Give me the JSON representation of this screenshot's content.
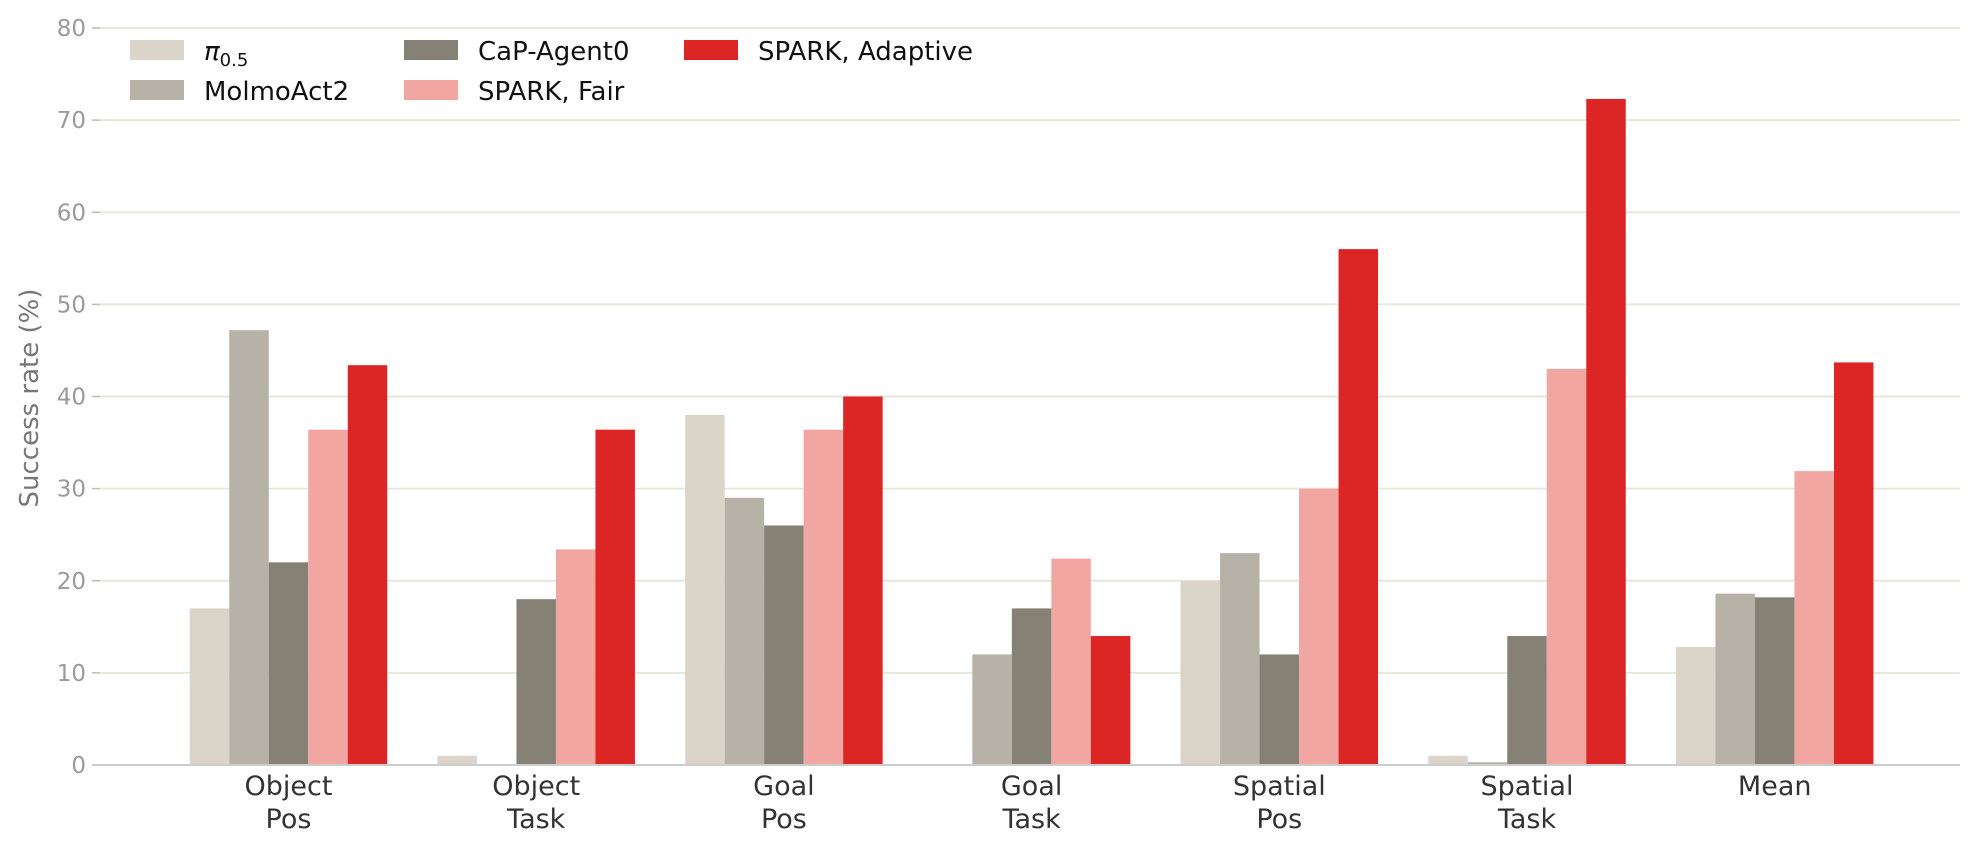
{
  "chart_data": {
    "type": "bar",
    "title": "",
    "xlabel": "",
    "ylabel": "Success rate (%)",
    "ylim": [
      0,
      80
    ],
    "yticks": [
      0,
      10,
      20,
      30,
      40,
      50,
      60,
      70,
      80
    ],
    "grid": true,
    "legend_position": "top-left",
    "categories": [
      [
        "Object",
        "Pos"
      ],
      [
        "Object",
        "Task"
      ],
      [
        "Goal",
        "Pos"
      ],
      [
        "Goal",
        "Task"
      ],
      [
        "Spatial",
        "Pos"
      ],
      [
        "Spatial",
        "Task"
      ],
      [
        "Mean"
      ]
    ],
    "series": [
      {
        "name": "π0.5",
        "legend_main": "π",
        "legend_sub": "0.5",
        "color": "#dad4c9",
        "values": [
          17,
          1,
          38,
          0,
          20,
          1,
          12.8
        ]
      },
      {
        "name": "MolmoAct2",
        "color": "#b7b2a8",
        "values": [
          47.2,
          0,
          29,
          12,
          23,
          0.3,
          18.6
        ]
      },
      {
        "name": "CaP-Agent0",
        "color": "#858175",
        "values": [
          22,
          18,
          26,
          17,
          12,
          14,
          18.2
        ]
      },
      {
        "name": "SPARK, Fair",
        "color": "#f1a6a1",
        "values": [
          36.4,
          23.4,
          36.4,
          22.4,
          30,
          43,
          31.9
        ]
      },
      {
        "name": "SPARK, Adaptive",
        "color": "#dc2626",
        "values": [
          43.4,
          36.4,
          40,
          14,
          56,
          72.3,
          43.7
        ]
      }
    ]
  }
}
